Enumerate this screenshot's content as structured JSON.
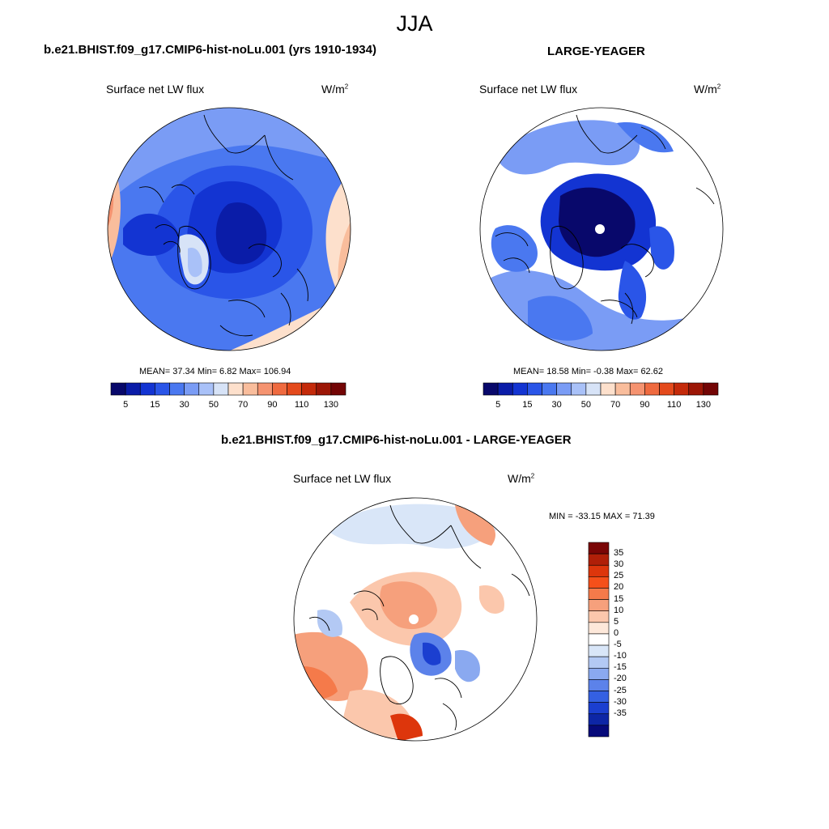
{
  "season": "JJA",
  "variable": "Surface net LW flux",
  "units_base": "W/m",
  "units_exp": "2",
  "panels": {
    "case": {
      "title": "b.e21.BHIST.f09_g17.CMIP6-hist-noLu.001 (yrs 1910-1934)",
      "stats": "MEAN=  37.34  Min=   6.82  Max= 106.94"
    },
    "obs": {
      "title": "LARGE-YEAGER",
      "stats": "MEAN=  18.58  Min=  -0.38  Max=  62.62"
    },
    "diff": {
      "title": "b.e21.BHIST.f09_g17.CMIP6-hist-noLu.001 - LARGE-YEAGER",
      "stats": "MIN = -33.15 MAX =  71.39"
    }
  },
  "colorbar_abs": {
    "labels": [
      "5",
      "15",
      "30",
      "50",
      "70",
      "90",
      "110",
      "130"
    ],
    "colors": [
      "#08086b",
      "#0a1ca8",
      "#1334d2",
      "#2a55e8",
      "#4a78f0",
      "#7a9cf5",
      "#a9c1f8",
      "#d7e3f7",
      "#fde0cc",
      "#f9bd9c",
      "#f59370",
      "#ef6a3f",
      "#e44a1c",
      "#c42a0a",
      "#9c1606",
      "#730505"
    ]
  },
  "colorbar_diff": {
    "labels": [
      "35",
      "30",
      "25",
      "20",
      "15",
      "10",
      "5",
      "0",
      "-5",
      "-10",
      "-15",
      "-20",
      "-25",
      "-30",
      "-35"
    ],
    "colors": [
      "#7a0505",
      "#b01f08",
      "#dd360c",
      "#f5501a",
      "#f57a4a",
      "#f6a07c",
      "#fbc7ac",
      "#fde8da",
      "#ffffff",
      "#d9e6f8",
      "#b3c9f4",
      "#8aa9f0",
      "#5c82ea",
      "#3460e2",
      "#1b3fd0",
      "#0d26a6",
      "#060a7a"
    ]
  },
  "colors": {
    "land_line": "#000000",
    "missing": "#ffffff"
  }
}
